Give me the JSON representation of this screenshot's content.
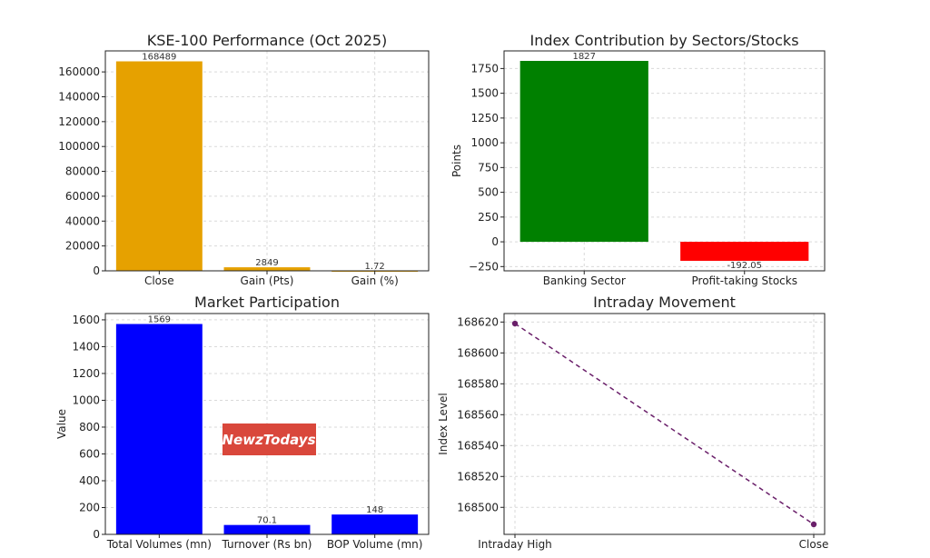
{
  "chart_data": [
    {
      "type": "bar",
      "title": "KSE-100 Performance (Oct 2025)",
      "categories": [
        "Close",
        "Gain (Pts)",
        "Gain (%)"
      ],
      "values": [
        168489,
        2849,
        1.72
      ],
      "labels": [
        "168489",
        "2849",
        "1.72"
      ],
      "color": "#e6a100",
      "xlabel": "",
      "ylabel": "",
      "ylim": [
        0,
        176900
      ],
      "yticks": [
        0,
        20000,
        40000,
        60000,
        80000,
        100000,
        120000,
        140000,
        160000
      ],
      "ytick_labels": [
        "0",
        "20000",
        "40000",
        "60000",
        "80000",
        "100000",
        "120000",
        "140000",
        "160000"
      ],
      "grid": true
    },
    {
      "type": "bar",
      "title": "Index Contribution by Sectors/Stocks",
      "categories": [
        "Banking Sector",
        "Profit-taking Stocks"
      ],
      "values": [
        1827,
        -192.05
      ],
      "labels": [
        "1827",
        "-192.05"
      ],
      "colors": [
        "#008000",
        "#ff0000"
      ],
      "xlabel": "",
      "ylabel": "Points",
      "ylim": [
        -293,
        1928
      ],
      "yticks": [
        -250,
        0,
        250,
        500,
        750,
        1000,
        1250,
        1500,
        1750
      ],
      "ytick_labels": [
        "−250",
        "0",
        "250",
        "500",
        "750",
        "1000",
        "1250",
        "1500",
        "1750"
      ],
      "grid": true
    },
    {
      "type": "bar",
      "title": "Market Participation",
      "categories": [
        "Total Volumes (mn)",
        "Turnover (Rs bn)",
        "BOP Volume (mn)"
      ],
      "values": [
        1569,
        70.1,
        148
      ],
      "labels": [
        "1569",
        "70.1",
        "148"
      ],
      "color": "#0000ff",
      "xlabel": "",
      "ylabel": "Value",
      "ylim": [
        0,
        1647
      ],
      "yticks": [
        0,
        200,
        400,
        600,
        800,
        1000,
        1200,
        1400,
        1600
      ],
      "ytick_labels": [
        "0",
        "200",
        "400",
        "600",
        "800",
        "1000",
        "1200",
        "1400",
        "1600"
      ],
      "grid": true
    },
    {
      "type": "line",
      "title": "Intraday Movement",
      "categories": [
        "Intraday High",
        "Close"
      ],
      "values": [
        168619,
        168489
      ],
      "color": "#6a1f6a",
      "line_style": "dashed",
      "marker": "circle",
      "xlabel": "",
      "ylabel": "Index Level",
      "ylim": [
        168482.5,
        168625.5
      ],
      "yticks": [
        168500,
        168520,
        168540,
        168560,
        168580,
        168600,
        168620
      ],
      "ytick_labels": [
        "168500",
        "168520",
        "168540",
        "168560",
        "168580",
        "168600",
        "168620"
      ],
      "grid": true
    }
  ],
  "watermark": {
    "text": "NewzTodays",
    "bg_color": "#d9473b",
    "text_color": "#ffffff"
  }
}
